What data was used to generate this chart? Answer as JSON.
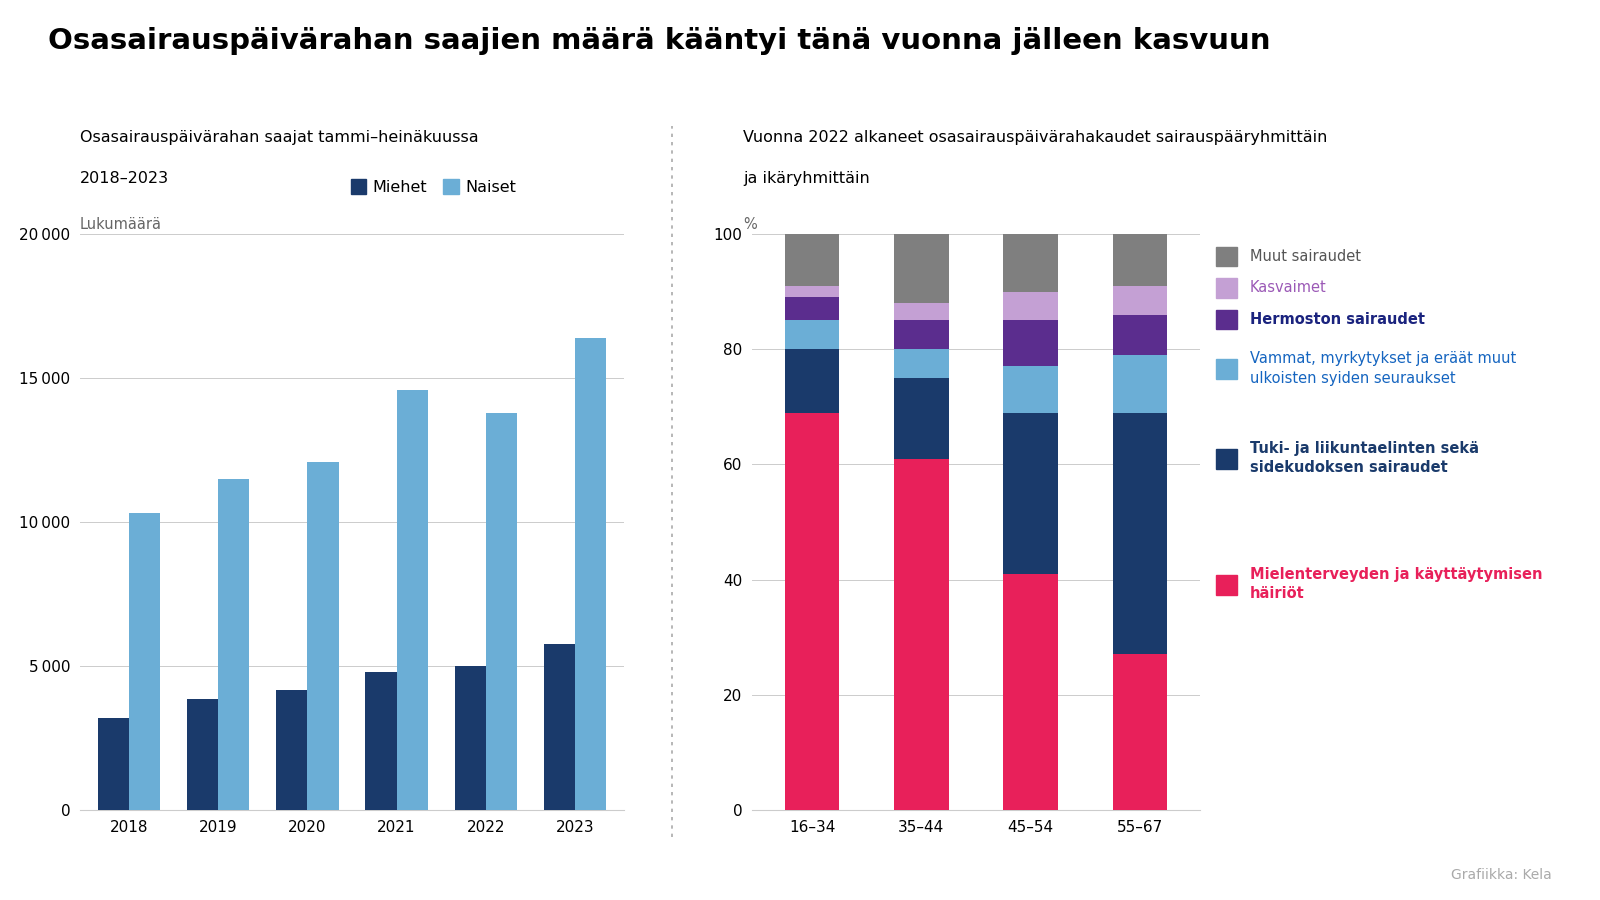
{
  "title": "Osasairauspäivärahan saajien määrä kääntyi tänä vuonna jälleen kasvuun",
  "left_subtitle_line1": "Osasairauspäivärahan saajat tammi–heinäkuussa",
  "left_subtitle_line2": "2018–2023",
  "right_subtitle_line1": "Vuonna 2022 alkaneet osasairauspäivärahakaudet sairauspääryhmittäin",
  "right_subtitle_line2": "ja ikäryhmittäin",
  "bar_years": [
    "2018",
    "2019",
    "2020",
    "2021",
    "2022",
    "2023"
  ],
  "men_values": [
    3200,
    3850,
    4150,
    4800,
    5000,
    5750
  ],
  "women_values": [
    10300,
    11500,
    12100,
    14600,
    13800,
    16400
  ],
  "men_color": "#1a3a6b",
  "women_color": "#6baed6",
  "left_ylabel": "Lukumäärä",
  "left_ylim": [
    0,
    20000
  ],
  "left_yticks": [
    0,
    5000,
    10000,
    15000,
    20000
  ],
  "legend_miehet": "Miehet",
  "legend_naiset": "Naiset",
  "age_groups": [
    "16–34",
    "35–44",
    "45–54",
    "55–67"
  ],
  "stack_values": [
    [
      69,
      61,
      41,
      27
    ],
    [
      11,
      14,
      28,
      42
    ],
    [
      5,
      5,
      8,
      10
    ],
    [
      4,
      5,
      8,
      7
    ],
    [
      2,
      3,
      5,
      5
    ],
    [
      9,
      12,
      10,
      9
    ]
  ],
  "stack_colors": [
    "#e8205a",
    "#1a3a6b",
    "#6baed6",
    "#5b2d8e",
    "#c4a0d4",
    "#7f7f7f"
  ],
  "right_ylabel": "%",
  "right_ylim": [
    0,
    100
  ],
  "right_yticks": [
    0,
    20,
    40,
    60,
    80,
    100
  ],
  "legend_entries": [
    {
      "label": "Muut sairaudet",
      "color": "#7f7f7f",
      "text_color": "#555555",
      "bold": false
    },
    {
      "label": "Kasvaimet",
      "color": "#c4a0d4",
      "text_color": "#9b59b6",
      "bold": false
    },
    {
      "label": "Hermoston sairaudet",
      "color": "#5b2d8e",
      "text_color": "#1a237e",
      "bold": true
    },
    {
      "label": "Vammat, myrkytykset ja eräät muut\nulkoisten syiden seuraukset",
      "color": "#6baed6",
      "text_color": "#1565c0",
      "bold": false
    },
    {
      "label": "Tuki- ja liikuntaelinten sekä\nsidekudoksen sairaudet",
      "color": "#1a3a6b",
      "text_color": "#1a3a6b",
      "bold": true
    },
    {
      "label": "Mielenterveyden ja käyttäytymisen\nhäiriöt",
      "color": "#e8205a",
      "text_color": "#e8205a",
      "bold": true
    }
  ],
  "background_color": "#ffffff",
  "footer": "Grafiikka: Kela"
}
